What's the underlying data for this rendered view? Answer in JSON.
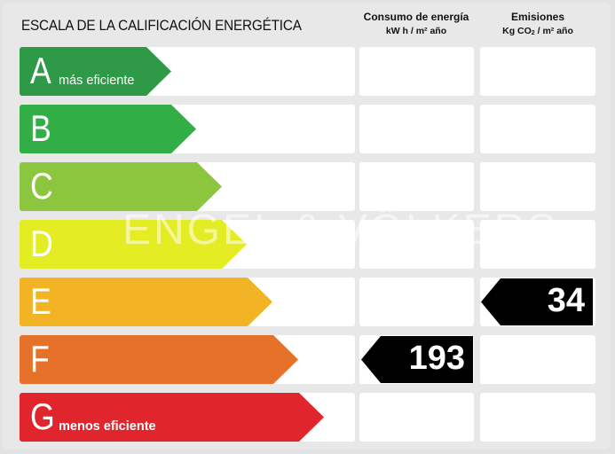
{
  "title": "ESCALA DE LA CALIFICACIÓN ENERGÉTICA",
  "columns": {
    "consumo": {
      "title": "Consumo de energía",
      "unit": "kW h / m² año"
    },
    "emisiones": {
      "title": "Emisiones",
      "unit_pre": "Kg CO",
      "unit_sub": "2",
      "unit_post": " / m² año"
    }
  },
  "ratings": [
    {
      "letter": "A",
      "tag": "más eficiente",
      "color": "#2e9a47"
    },
    {
      "letter": "B",
      "tag": "",
      "color": "#32ae46"
    },
    {
      "letter": "C",
      "tag": "",
      "color": "#8cc63f"
    },
    {
      "letter": "D",
      "tag": "",
      "color": "#e4ec23"
    },
    {
      "letter": "E",
      "tag": "",
      "color": "#f2b324"
    },
    {
      "letter": "F",
      "tag": "",
      "color": "#e6722a"
    },
    {
      "letter": "G",
      "tag": "menos eficiente",
      "color": "#e0262c"
    }
  ],
  "consumo_value": {
    "rating": "F",
    "value": "193"
  },
  "emisiones_value": {
    "rating": "E",
    "value": "34"
  },
  "watermark": "ENGEL & VÖLKERS"
}
